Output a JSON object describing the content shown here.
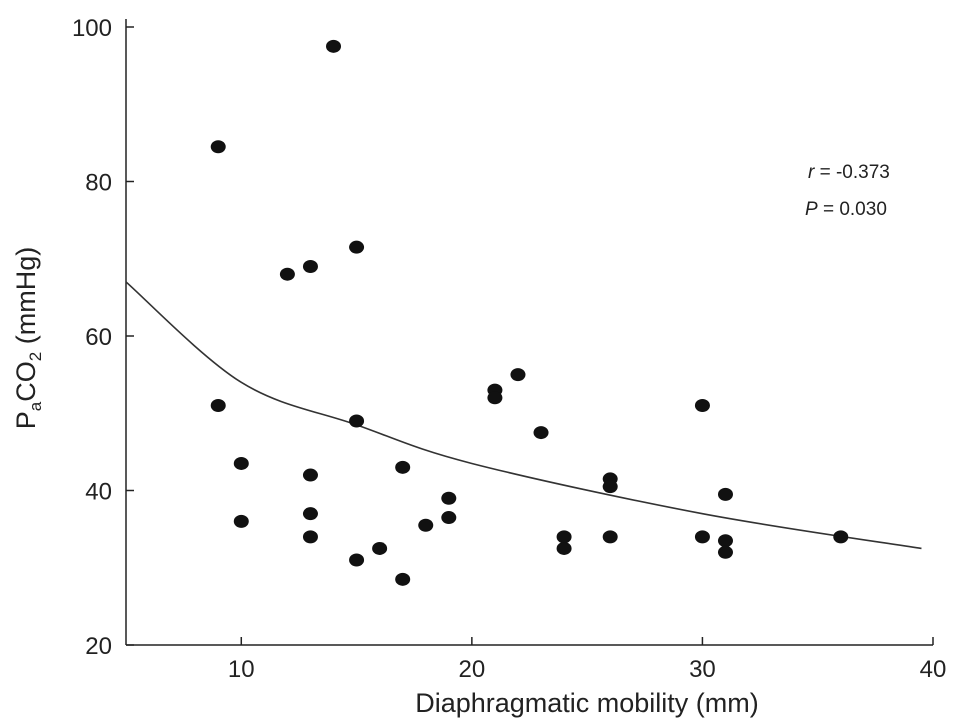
{
  "chart_data": {
    "type": "scatter",
    "xlabel": "Diaphragmatic mobility (mm)",
    "ylabel": {
      "prefix": "P",
      "sub1": "a",
      "mid": "CO",
      "sub2": "2",
      "suffix": " (mmHg)"
    },
    "xlim": [
      5,
      40
    ],
    "ylim": [
      20,
      100
    ],
    "xticks": [
      10,
      20,
      30,
      40
    ],
    "yticks": [
      20,
      40,
      60,
      80,
      100
    ],
    "grid": false,
    "annotations": {
      "r": {
        "symbol": "r",
        "text": " = -0.373"
      },
      "p": {
        "symbol": "P",
        "text": " = 0.030"
      }
    },
    "points": [
      {
        "x": 9,
        "y": 84.5
      },
      {
        "x": 9,
        "y": 51
      },
      {
        "x": 10,
        "y": 43.5
      },
      {
        "x": 10,
        "y": 36
      },
      {
        "x": 12,
        "y": 68
      },
      {
        "x": 13,
        "y": 69
      },
      {
        "x": 13,
        "y": 42
      },
      {
        "x": 13,
        "y": 37
      },
      {
        "x": 13,
        "y": 34
      },
      {
        "x": 14,
        "y": 97.5
      },
      {
        "x": 15,
        "y": 71.5
      },
      {
        "x": 15,
        "y": 49
      },
      {
        "x": 15,
        "y": 31
      },
      {
        "x": 16,
        "y": 32.5
      },
      {
        "x": 17,
        "y": 43
      },
      {
        "x": 17,
        "y": 28.5
      },
      {
        "x": 18,
        "y": 35.5
      },
      {
        "x": 19,
        "y": 39
      },
      {
        "x": 19,
        "y": 36.5
      },
      {
        "x": 21,
        "y": 53
      },
      {
        "x": 21,
        "y": 52
      },
      {
        "x": 22,
        "y": 55
      },
      {
        "x": 23,
        "y": 47.5
      },
      {
        "x": 24,
        "y": 34
      },
      {
        "x": 24,
        "y": 32.5
      },
      {
        "x": 26,
        "y": 41.5
      },
      {
        "x": 26,
        "y": 40.5
      },
      {
        "x": 26,
        "y": 34
      },
      {
        "x": 30,
        "y": 51
      },
      {
        "x": 30,
        "y": 34
      },
      {
        "x": 31,
        "y": 39.5
      },
      {
        "x": 31,
        "y": 33.5
      },
      {
        "x": 31,
        "y": 32
      },
      {
        "x": 36,
        "y": 34
      }
    ],
    "trend": {
      "model": "power",
      "points": [
        [
          5,
          67
        ],
        [
          10,
          54
        ],
        [
          15,
          48.5
        ],
        [
          20,
          43.5
        ],
        [
          30,
          37
        ],
        [
          39.5,
          32.5
        ]
      ]
    }
  }
}
